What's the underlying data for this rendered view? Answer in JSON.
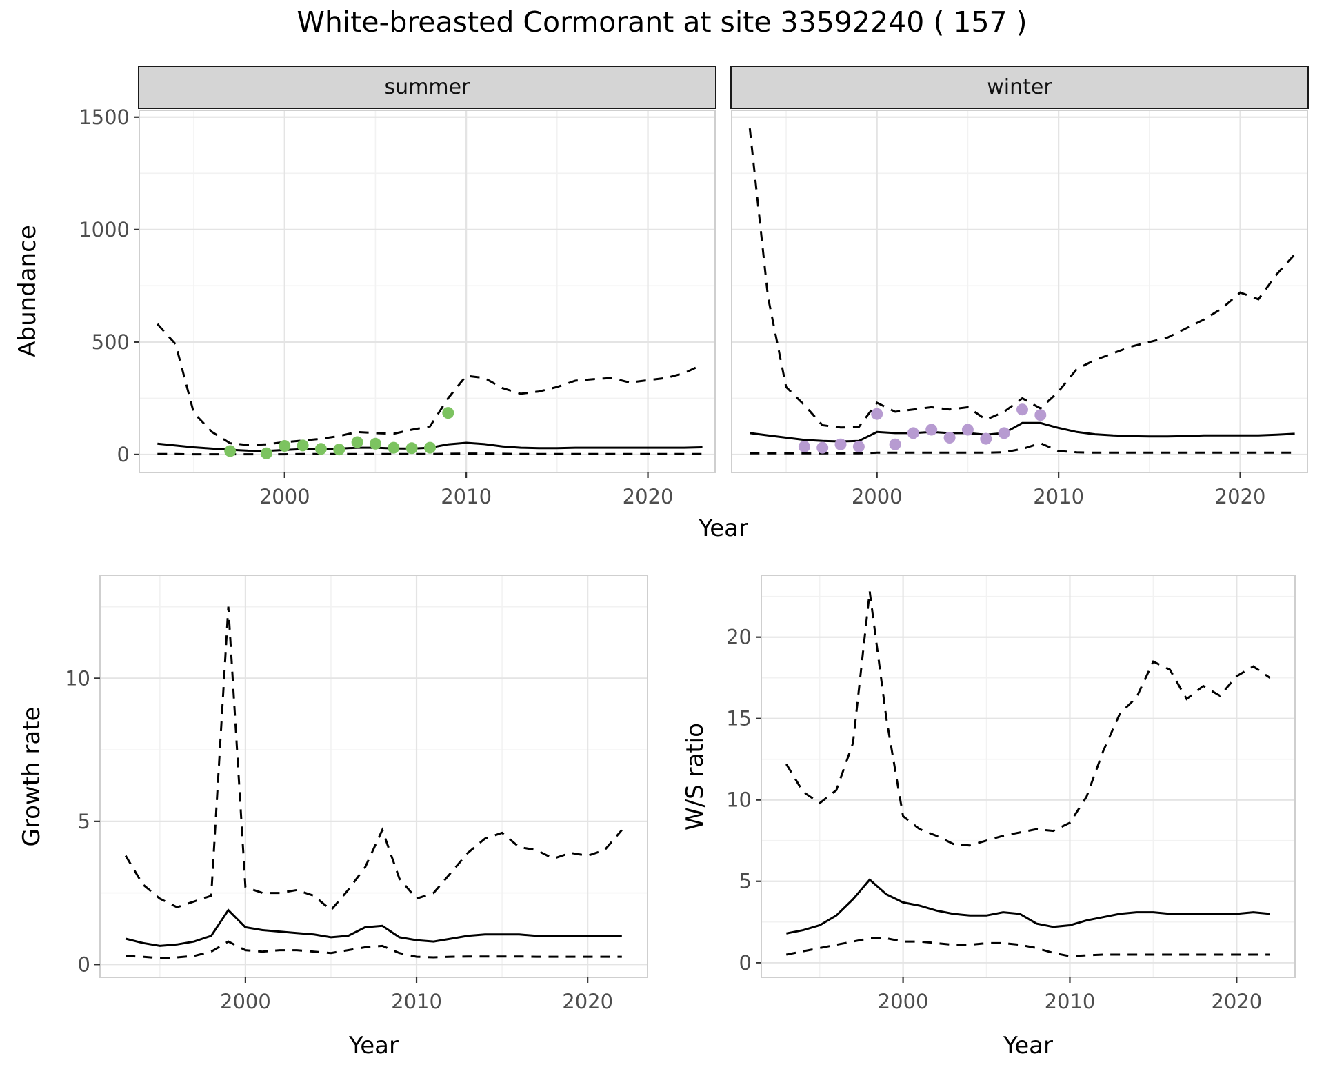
{
  "title": "White-breasted Cormorant at site 33592240 ( 157 )",
  "colors": {
    "line": "#000000",
    "summer_point": "#7cc360",
    "winter_point": "#b79bd1",
    "strip_bg": "#d5d5d5",
    "grid_major": "#e4e4e4",
    "grid_minor": "#f2f2f2",
    "panel_border": "#cfcfcf",
    "tick": "#333333",
    "tick_label": "#4d4d4d"
  },
  "chart_data": [
    {
      "id": "abundance-summer",
      "type": "line",
      "facet_label": "summer",
      "xlabel": "Year",
      "ylabel": "Abundance",
      "xlim": [
        1992,
        2023.7
      ],
      "ylim": [
        -80,
        1530
      ],
      "xticks": [
        2000,
        2010,
        2020
      ],
      "yticks": [
        0,
        500,
        1000,
        1500
      ],
      "grid": true,
      "legend": "none",
      "x": [
        1993,
        1994,
        1995,
        1996,
        1997,
        1998,
        1999,
        2000,
        2001,
        2002,
        2003,
        2004,
        2005,
        2006,
        2007,
        2008,
        2009,
        2010,
        2011,
        2012,
        2013,
        2014,
        2015,
        2016,
        2017,
        2018,
        2019,
        2020,
        2021,
        2022,
        2023
      ],
      "series": [
        {
          "name": "upper-ci",
          "style": "dashed",
          "values": [
            580,
            490,
            185,
            100,
            50,
            42,
            45,
            55,
            62,
            70,
            82,
            100,
            95,
            92,
            110,
            125,
            250,
            350,
            340,
            295,
            270,
            280,
            300,
            328,
            335,
            340,
            320,
            330,
            340,
            362,
            400
          ]
        },
        {
          "name": "median",
          "style": "solid",
          "values": [
            48,
            40,
            32,
            26,
            21,
            17,
            16,
            20,
            24,
            25,
            26,
            30,
            30,
            27,
            26,
            30,
            45,
            52,
            46,
            36,
            30,
            28,
            28,
            30,
            30,
            30,
            30,
            30,
            30,
            30,
            32
          ]
        },
        {
          "name": "lower-ci",
          "style": "dashed",
          "values": [
            2,
            2,
            1,
            1,
            1,
            1,
            1,
            1,
            2,
            2,
            2,
            2,
            2,
            2,
            2,
            2,
            3,
            4,
            4,
            3,
            2,
            2,
            2,
            2,
            2,
            2,
            2,
            2,
            2,
            2,
            2
          ]
        }
      ],
      "points": {
        "name": "observed-counts",
        "color": "#7cc360",
        "x": [
          1997,
          1999,
          2000,
          2001,
          2002,
          2003,
          2004,
          2005,
          2006,
          2007,
          2008,
          2009
        ],
        "y": [
          15,
          5,
          38,
          40,
          25,
          22,
          55,
          48,
          30,
          28,
          30,
          185
        ]
      }
    },
    {
      "id": "abundance-winter",
      "type": "line",
      "facet_label": "winter",
      "xlabel": "Year",
      "ylabel": "Abundance",
      "xlim": [
        1992,
        2023.7
      ],
      "ylim": [
        -80,
        1530
      ],
      "xticks": [
        2000,
        2010,
        2020
      ],
      "yticks": [
        0,
        500,
        1000,
        1500
      ],
      "grid": true,
      "legend": "none",
      "x": [
        1993,
        1994,
        1995,
        1996,
        1997,
        1998,
        1999,
        2000,
        2001,
        2002,
        2003,
        2004,
        2005,
        2006,
        2007,
        2008,
        2009,
        2010,
        2011,
        2012,
        2013,
        2014,
        2015,
        2016,
        2017,
        2018,
        2019,
        2020,
        2021,
        2022,
        2023
      ],
      "series": [
        {
          "name": "upper-ci",
          "style": "dashed",
          "values": [
            1450,
            700,
            300,
            220,
            130,
            120,
            122,
            230,
            190,
            200,
            210,
            200,
            210,
            155,
            190,
            250,
            205,
            280,
            380,
            420,
            450,
            480,
            500,
            520,
            560,
            600,
            650,
            720,
            690,
            800,
            890
          ]
        },
        {
          "name": "median",
          "style": "solid",
          "values": [
            95,
            85,
            75,
            65,
            60,
            58,
            60,
            100,
            95,
            95,
            100,
            95,
            95,
            88,
            95,
            140,
            140,
            118,
            100,
            90,
            85,
            82,
            80,
            80,
            82,
            85,
            85,
            85,
            85,
            88,
            92
          ]
        },
        {
          "name": "lower-ci",
          "style": "dashed",
          "values": [
            5,
            5,
            5,
            5,
            5,
            5,
            5,
            8,
            8,
            8,
            8,
            8,
            8,
            8,
            10,
            25,
            50,
            15,
            10,
            8,
            8,
            8,
            8,
            8,
            8,
            8,
            8,
            8,
            8,
            8,
            8
          ]
        }
      ],
      "points": {
        "name": "observed-counts",
        "color": "#b79bd1",
        "x": [
          1996,
          1997,
          1998,
          1999,
          2000,
          2001,
          2002,
          2003,
          2004,
          2005,
          2006,
          2007,
          2008,
          2009
        ],
        "y": [
          35,
          30,
          45,
          35,
          180,
          45,
          95,
          110,
          75,
          110,
          70,
          95,
          200,
          175
        ]
      }
    },
    {
      "id": "growth-rate",
      "type": "line",
      "xlabel": "Year",
      "ylabel": "Growth rate",
      "xlim": [
        1991.5,
        2023.5
      ],
      "ylim": [
        -0.45,
        13.6
      ],
      "xticks": [
        2000,
        2010,
        2020
      ],
      "yticks": [
        0,
        5,
        10
      ],
      "grid": true,
      "legend": "none",
      "x": [
        1993,
        1994,
        1995,
        1996,
        1997,
        1998,
        1999,
        2000,
        2001,
        2002,
        2003,
        2004,
        2005,
        2006,
        2007,
        2008,
        2009,
        2010,
        2011,
        2012,
        2013,
        2014,
        2015,
        2016,
        2017,
        2018,
        2019,
        2020,
        2021,
        2022
      ],
      "series": [
        {
          "name": "upper-ci",
          "style": "dashed",
          "values": [
            3.8,
            2.8,
            2.3,
            2.0,
            2.2,
            2.4,
            12.5,
            2.7,
            2.5,
            2.5,
            2.6,
            2.4,
            1.9,
            2.6,
            3.4,
            4.7,
            3.0,
            2.3,
            2.5,
            3.2,
            3.9,
            4.4,
            4.6,
            4.1,
            4.0,
            3.7,
            3.9,
            3.8,
            4.0,
            4.7
          ]
        },
        {
          "name": "median",
          "style": "solid",
          "values": [
            0.9,
            0.75,
            0.65,
            0.7,
            0.8,
            1.0,
            1.9,
            1.3,
            1.2,
            1.15,
            1.1,
            1.05,
            0.95,
            1.0,
            1.3,
            1.35,
            0.95,
            0.85,
            0.8,
            0.9,
            1.0,
            1.05,
            1.05,
            1.05,
            1.0,
            1.0,
            1.0,
            1.0,
            1.0,
            1.0
          ]
        },
        {
          "name": "lower-ci",
          "style": "dashed",
          "values": [
            0.3,
            0.27,
            0.22,
            0.25,
            0.3,
            0.45,
            0.8,
            0.5,
            0.45,
            0.5,
            0.5,
            0.45,
            0.4,
            0.5,
            0.6,
            0.65,
            0.4,
            0.27,
            0.25,
            0.27,
            0.28,
            0.28,
            0.28,
            0.28,
            0.27,
            0.27,
            0.27,
            0.27,
            0.27,
            0.27
          ]
        }
      ]
    },
    {
      "id": "ws-ratio",
      "type": "line",
      "xlabel": "Year",
      "ylabel": "W/S ratio",
      "xlim": [
        1991.5,
        2023.5
      ],
      "ylim": [
        -0.9,
        23.8
      ],
      "xticks": [
        2000,
        2010,
        2020
      ],
      "yticks": [
        0,
        5,
        10,
        15,
        20
      ],
      "grid": true,
      "legend": "none",
      "x": [
        1993,
        1994,
        1995,
        1996,
        1997,
        1998,
        1999,
        2000,
        2001,
        2002,
        2003,
        2004,
        2005,
        2006,
        2007,
        2008,
        2009,
        2010,
        2011,
        2012,
        2013,
        2014,
        2015,
        2016,
        2017,
        2018,
        2019,
        2020,
        2021,
        2022
      ],
      "series": [
        {
          "name": "upper-ci",
          "style": "dashed",
          "values": [
            12.2,
            10.5,
            9.8,
            10.6,
            13.5,
            22.8,
            15.0,
            9.0,
            8.2,
            7.8,
            7.3,
            7.2,
            7.5,
            7.8,
            8.0,
            8.2,
            8.1,
            8.6,
            10.2,
            13.0,
            15.3,
            16.3,
            18.5,
            18.0,
            16.2,
            17.0,
            16.4,
            17.6,
            18.2,
            17.5
          ]
        },
        {
          "name": "median",
          "style": "solid",
          "values": [
            1.8,
            2.0,
            2.3,
            2.9,
            3.9,
            5.1,
            4.2,
            3.7,
            3.5,
            3.2,
            3.0,
            2.9,
            2.9,
            3.1,
            3.0,
            2.4,
            2.2,
            2.3,
            2.6,
            2.8,
            3.0,
            3.1,
            3.1,
            3.0,
            3.0,
            3.0,
            3.0,
            3.0,
            3.1,
            3.0
          ]
        },
        {
          "name": "lower-ci",
          "style": "dashed",
          "values": [
            0.5,
            0.7,
            0.9,
            1.1,
            1.3,
            1.5,
            1.5,
            1.3,
            1.3,
            1.2,
            1.1,
            1.1,
            1.2,
            1.2,
            1.1,
            0.9,
            0.6,
            0.4,
            0.45,
            0.5,
            0.5,
            0.5,
            0.5,
            0.5,
            0.5,
            0.5,
            0.5,
            0.5,
            0.5,
            0.5
          ]
        }
      ]
    }
  ]
}
